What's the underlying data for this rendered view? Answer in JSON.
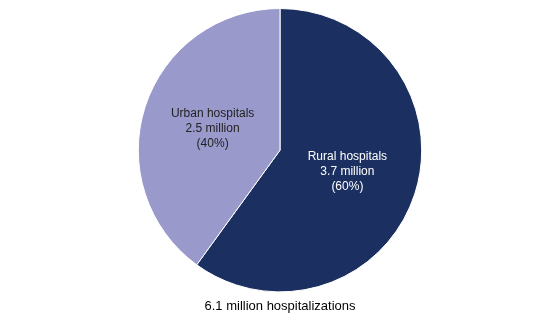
{
  "chart_data": {
    "type": "pie",
    "values": [
      60,
      40
    ],
    "value_labels": [
      "Rural hospitals\n3.7 million\n(60%)",
      "Urban hospitals\n2.5 million\n(40%)"
    ],
    "data_labels": true,
    "colors": [
      "#1b3060",
      "#9999cc"
    ],
    "subtitle": "6.1 million hospitalizations"
  }
}
